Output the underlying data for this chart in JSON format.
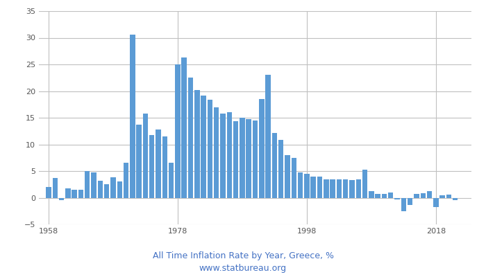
{
  "years": [
    1958,
    1959,
    1960,
    1961,
    1962,
    1963,
    1964,
    1965,
    1966,
    1967,
    1968,
    1969,
    1970,
    1971,
    1972,
    1973,
    1974,
    1975,
    1976,
    1977,
    1978,
    1979,
    1980,
    1981,
    1982,
    1983,
    1984,
    1985,
    1986,
    1987,
    1988,
    1989,
    1990,
    1991,
    1992,
    1993,
    1994,
    1995,
    1996,
    1997,
    1998,
    1999,
    2000,
    2001,
    2002,
    2003,
    2004,
    2005,
    2006,
    2007,
    2008,
    2009,
    2010,
    2011,
    2012,
    2013,
    2014,
    2015,
    2016,
    2017,
    2018,
    2019,
    2020,
    2021,
    2022
  ],
  "values": [
    2.0,
    3.7,
    -0.4,
    1.8,
    1.5,
    1.5,
    5.0,
    4.8,
    3.2,
    2.5,
    3.8,
    3.0,
    6.6,
    30.6,
    13.7,
    15.8,
    11.8,
    12.8,
    11.5,
    6.6,
    25.0,
    26.3,
    22.5,
    20.2,
    19.2,
    18.4,
    17.0,
    15.8,
    16.0,
    14.3,
    15.0,
    14.7,
    14.5,
    18.5,
    23.0,
    12.1,
    10.8,
    8.0,
    7.5,
    4.8,
    4.5,
    4.0,
    4.0,
    3.5,
    3.5,
    3.5,
    3.4,
    3.3,
    3.4,
    5.2,
    1.2,
    0.7,
    0.7,
    1.0,
    -0.3,
    -2.5,
    -1.4,
    0.7,
    0.8,
    1.2,
    -1.8,
    0.5,
    0.6,
    -0.5,
    0.0
  ],
  "bar_color": "#5b9bd5",
  "title_line1": "All Time Inflation Rate by Year, Greece, %",
  "title_line2": "www.statbureau.org",
  "title_color": "#4472c4",
  "grid_color": "#c0c0c0",
  "ylim": [
    -5,
    35
  ],
  "yticks": [
    -5,
    0,
    5,
    10,
    15,
    20,
    25,
    30,
    35
  ],
  "xtick_labels": [
    "1958",
    "1978",
    "1998",
    "2018"
  ],
  "xtick_positions": [
    1958,
    1978,
    1998,
    2018
  ],
  "xlim": [
    1956.5,
    2023.5
  ]
}
